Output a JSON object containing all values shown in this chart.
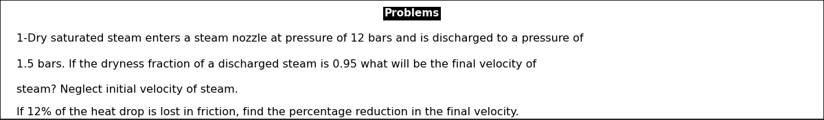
{
  "title": "Problems",
  "title_bg_color": "#000000",
  "title_text_color": "#ffffff",
  "title_fontsize": 11,
  "body_lines": [
    "1-Dry saturated steam enters a steam nozzle at pressure of 12 bars and is discharged to a pressure of",
    "1.5 bars. If the dryness fraction of a discharged steam is 0.95 what will be the final velocity of",
    "steam? Neglect initial velocity of steam.",
    "If 12% of the heat drop is lost in friction, find the percentage reduction in the final velocity."
  ],
  "body_fontsize": 11.5,
  "body_text_color": "#000000",
  "background_color": "#ffffff",
  "border_color": "#000000",
  "fig_width": 12.0,
  "fig_height": 1.76
}
